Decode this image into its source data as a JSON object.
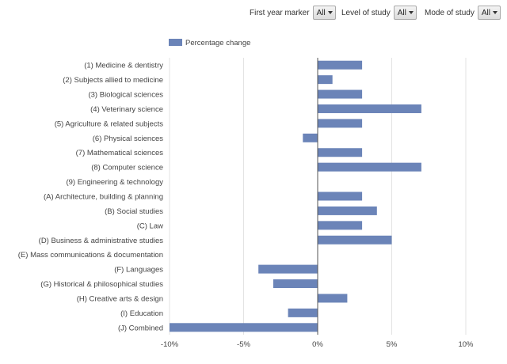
{
  "filters": [
    {
      "label": "First year marker",
      "value": "All"
    },
    {
      "label": "Level of study",
      "value": "All"
    },
    {
      "label": "Mode of study",
      "value": "All"
    }
  ],
  "chart_data": {
    "type": "bar",
    "orientation": "horizontal",
    "categories": [
      "(1) Medicine & dentistry",
      "(2) Subjects allied to medicine",
      "(3) Biological sciences",
      "(4) Veterinary science",
      "(5) Agriculture & related subjects",
      "(6) Physical sciences",
      "(7) Mathematical sciences",
      "(8) Computer science",
      "(9) Engineering & technology",
      "(A) Architecture, building & planning",
      "(B) Social studies",
      "(C) Law",
      "(D) Business & administrative studies",
      "(E) Mass communications & documentation",
      "(F) Languages",
      "(G) Historical & philosophical studies",
      "(H) Creative arts & design",
      "(I) Education",
      "(J) Combined"
    ],
    "series": [
      {
        "name": "Percentage change",
        "color": "#6b84b8",
        "values": [
          3,
          1,
          3,
          7,
          3,
          -1,
          3,
          7,
          0,
          3,
          4,
          3,
          5,
          0,
          -4,
          -3,
          2,
          -2,
          -10
        ]
      }
    ],
    "xlim": [
      -10,
      10
    ],
    "xticks": [
      -10,
      -5,
      0,
      5,
      10
    ],
    "xtick_labels": [
      "-10%",
      "-5%",
      "0%",
      "5%",
      "10%"
    ],
    "grid": true,
    "legend": "top-left"
  }
}
